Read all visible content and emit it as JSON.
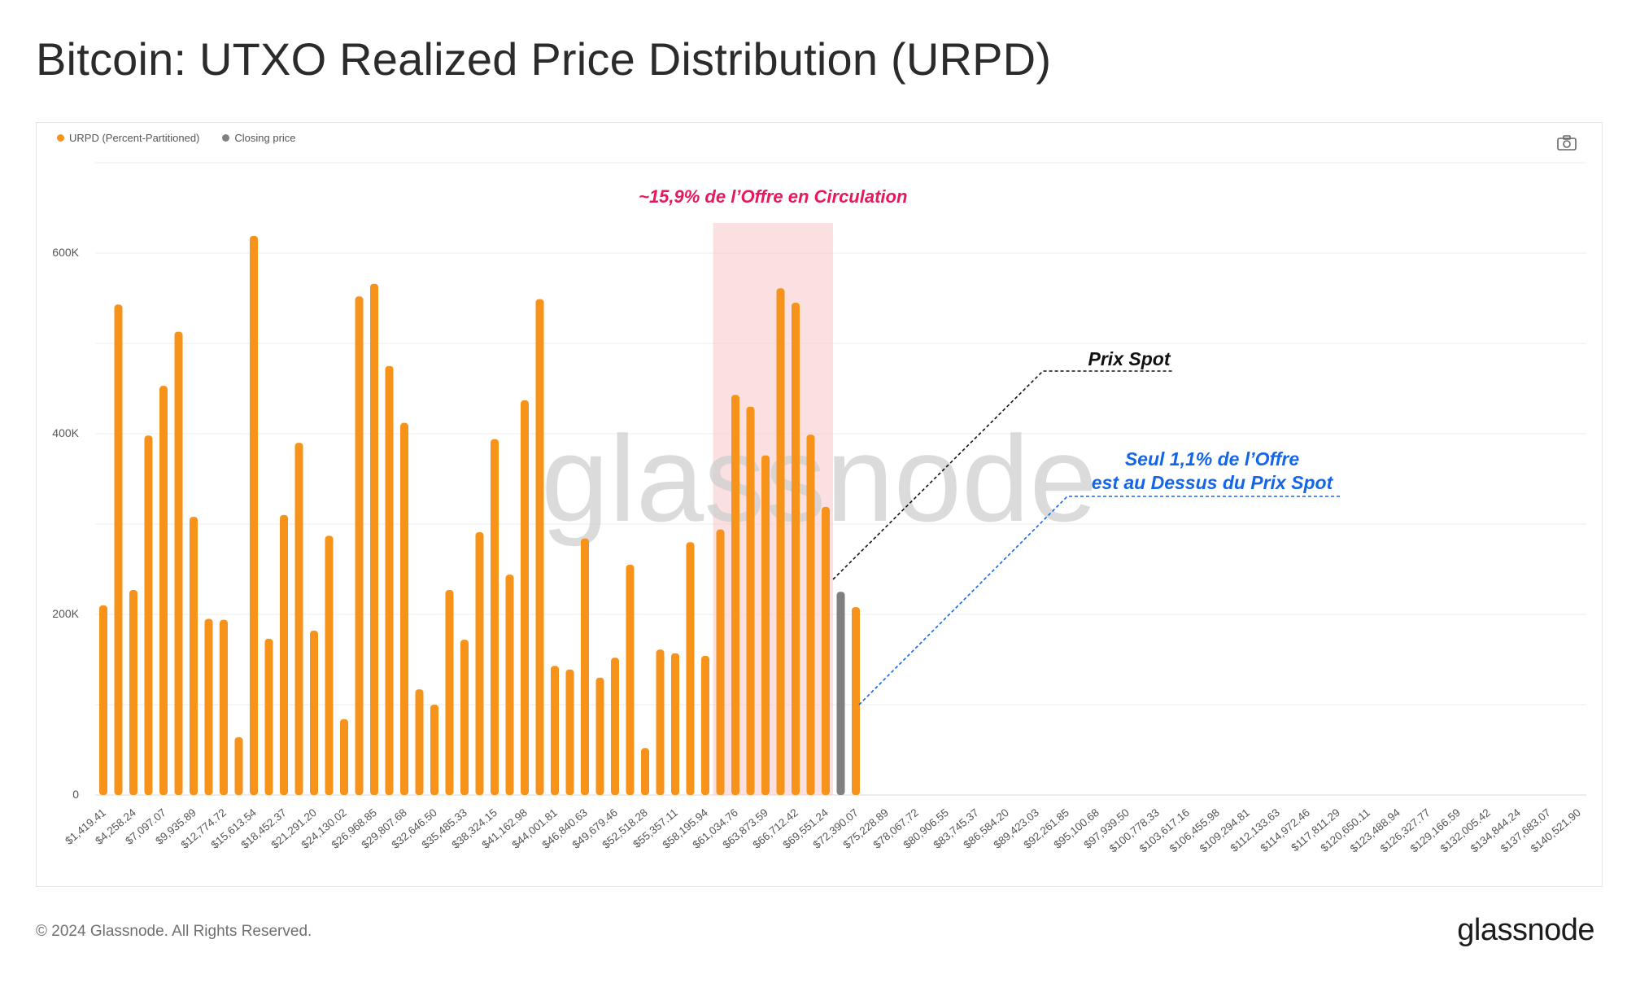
{
  "title": "Bitcoin: UTXO Realized Price Distribution (URPD)",
  "legend": [
    {
      "label": "URPD (Percent-Partitioned)",
      "color": "#f7931a"
    },
    {
      "label": "Closing price",
      "color": "#808080"
    }
  ],
  "watermark": "glassnode",
  "annotations": {
    "highlight_label": "~15,9% de l’Offre en Circulation",
    "spot_label": "Prix Spot",
    "above_line1": "Seul 1,1% de l’Offre",
    "above_line2": "est au Dessus du Prix Spot"
  },
  "footer": {
    "copyright": "© 2024 Glassnode. All Rights Reserved.",
    "logo": "glassnode"
  },
  "colors": {
    "bar": "#f7931a",
    "closing": "#808080",
    "highlight": "#f8d0d0",
    "pink_text": "#e6195a",
    "blue_text": "#1565e8",
    "grid": "#ececec"
  },
  "chart_data": {
    "type": "bar",
    "y_ticks": [
      "0",
      "200K",
      "400K",
      "600K"
    ],
    "y_tick_values": [
      0,
      200000,
      400000,
      600000
    ],
    "ylim": [
      0,
      700000
    ],
    "x_ticks": [
      "$1,419.41",
      "$4,258.24",
      "$7,097.07",
      "$9,935.89",
      "$12,774.72",
      "$15,613.54",
      "$18,452.37",
      "$21,291.20",
      "$24,130.02",
      "$26,968.85",
      "$29,807.68",
      "$32,646.50",
      "$35,485.33",
      "$38,324.15",
      "$41,162.98",
      "$44,001.81",
      "$46,840.63",
      "$49,679.46",
      "$52,518.28",
      "$55,357.11",
      "$58,195.94",
      "$61,034.76",
      "$63,873.59",
      "$66,712.42",
      "$69,551.24",
      "$72,390.07",
      "$75,228.89",
      "$78,067.72",
      "$80,906.55",
      "$83,745.37",
      "$86,584.20",
      "$89,423.03",
      "$92,261.85",
      "$95,100.68",
      "$97,939.50",
      "$100,778.33",
      "$103,617.16",
      "$106,455.98",
      "$109,294.81",
      "$112,133.63",
      "$114,972.46",
      "$117,811.29",
      "$120,650.11",
      "$123,488.94",
      "$126,327.77",
      "$129,166.59",
      "$132,005.42",
      "$134,844.24",
      "$137,683.07",
      "$140,521.90"
    ],
    "series": [
      {
        "name": "URPD (Percent-Partitioned)",
        "color": "#f7931a",
        "values": [
          210000,
          543000,
          227000,
          398000,
          453000,
          513000,
          308000,
          195000,
          194000,
          64000,
          619000,
          173000,
          310000,
          390000,
          182000,
          287000,
          84000,
          552000,
          566000,
          475000,
          412000,
          117000,
          100000,
          227000,
          172000,
          291000,
          394000,
          244000,
          437000,
          549000,
          143000,
          139000,
          284000,
          130000,
          152000,
          255000,
          52000,
          161000,
          157000,
          280000,
          154000,
          294000,
          443000,
          430000,
          376000,
          561000,
          545000,
          399000,
          319000,
          0,
          208000,
          0,
          0,
          0,
          0,
          0,
          0,
          0,
          0,
          0,
          0,
          0,
          0,
          0,
          0,
          0,
          0,
          0,
          0,
          0,
          0,
          0,
          0,
          0,
          0,
          0,
          0,
          0,
          0,
          0,
          0,
          0,
          0,
          0,
          0,
          0,
          0,
          0,
          0,
          0,
          0,
          0,
          0,
          0,
          0,
          0,
          0,
          0,
          0,
          0
        ]
      },
      {
        "name": "Closing price",
        "color": "#808080",
        "bin_index": 49,
        "value": 225000
      }
    ],
    "highlight_range_bins": [
      41,
      48
    ],
    "highlight_share": "~15,9%",
    "above_spot_share": "1,1%"
  }
}
